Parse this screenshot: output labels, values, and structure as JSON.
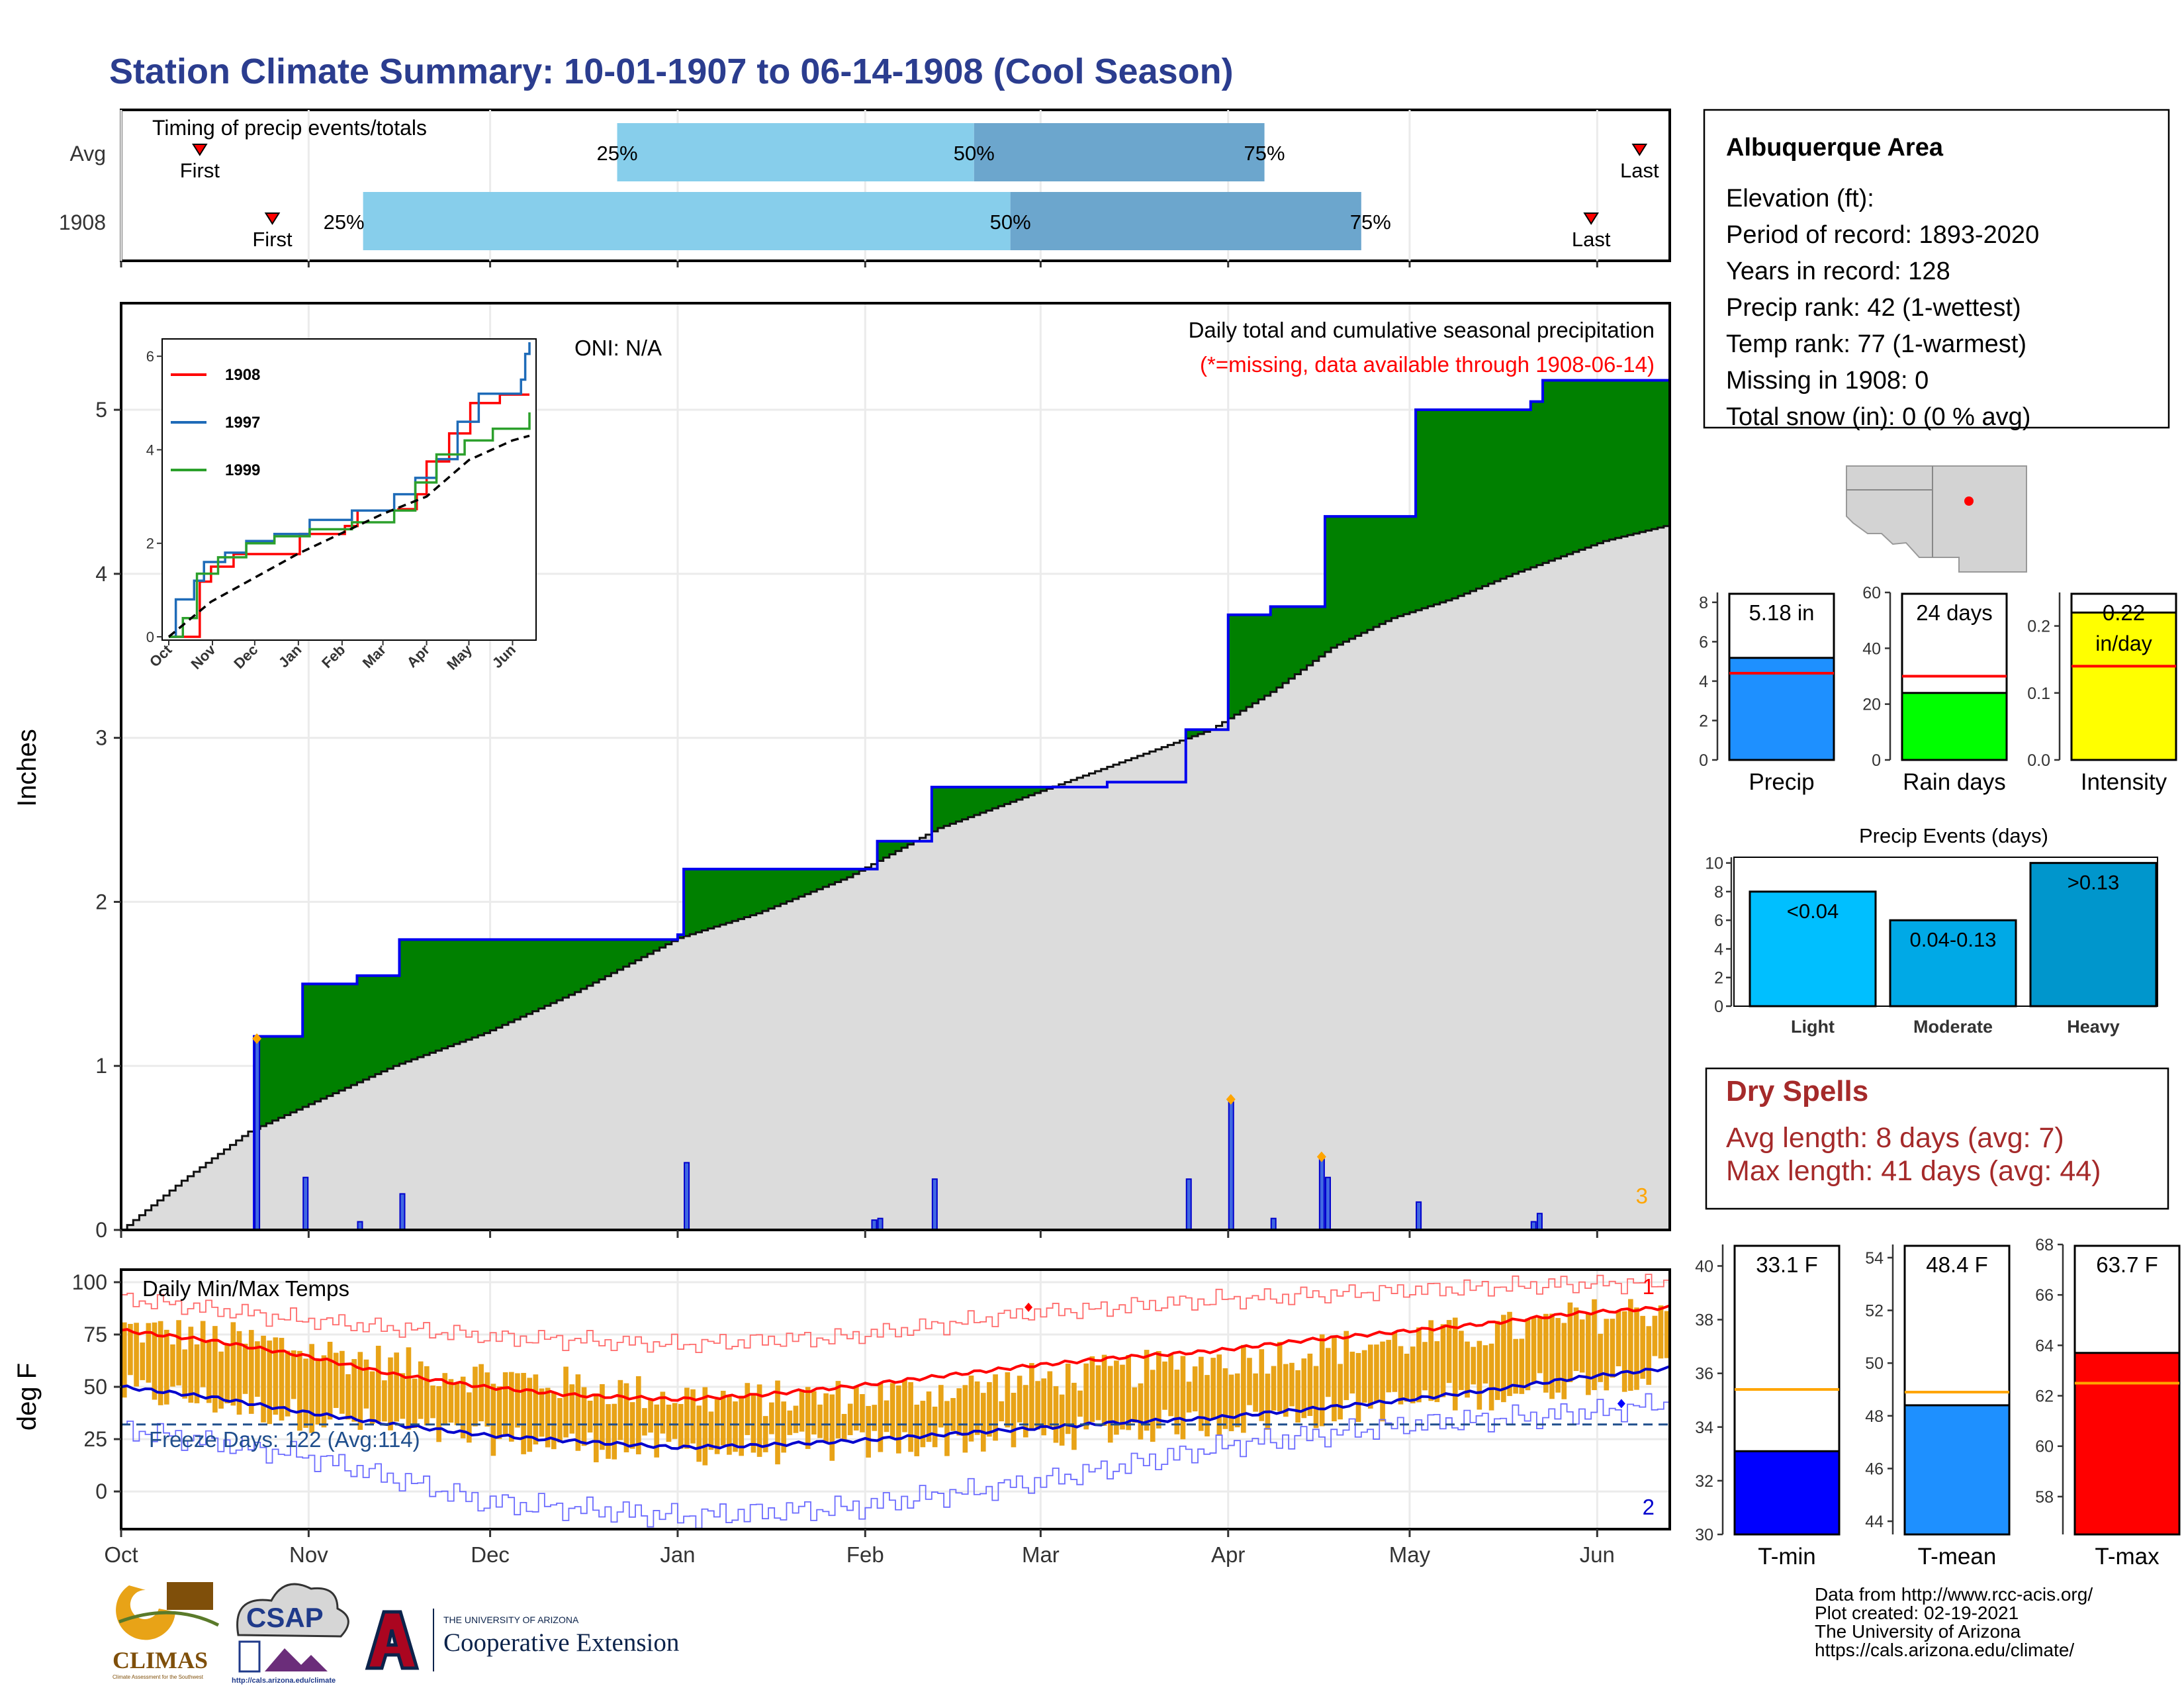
{
  "title": "Station Climate Summary: 10-01-1907 to 06-14-1908 (Cool Season)",
  "colors": {
    "title": "#2b3d8f",
    "green": "#008000",
    "brown": "#7f4f0a",
    "normal_fill": "#dcdcdc",
    "cum_line": "#0000ee",
    "light_blue": "#87ceeb",
    "mid_blue": "#6ca6cd",
    "tmax": "#ff0000",
    "tmin": "#0000cd",
    "temp_bar": "#e8a317",
    "dry_spells": "#a52a2a",
    "freeze": "#1f4e8c"
  },
  "timing": {
    "label": "Timing of precip events/totals",
    "rows": [
      {
        "label": "Avg",
        "first": "First",
        "last": "Last",
        "first_day": 13,
        "last_day": 251,
        "p25": 82,
        "p50": 141,
        "p75": 189
      },
      {
        "label": "1908",
        "first": "First",
        "last": "Last",
        "first_day": 25,
        "last_day": 243,
        "p25": 40,
        "p50": 147,
        "p75": 205
      }
    ],
    "pct_labels": [
      "25%",
      "50%",
      "75%"
    ],
    "xlim": [
      0,
      256
    ]
  },
  "months": [
    "Oct",
    "Nov",
    "Dec",
    "Jan",
    "Feb",
    "Mar",
    "Apr",
    "May",
    "Jun"
  ],
  "month_starts": [
    0,
    31,
    61,
    92,
    123,
    152,
    183,
    213,
    244
  ],
  "chart_data": [
    {
      "type": "area",
      "name": "precip_main",
      "ylabel": "Inches",
      "yticks": [
        0,
        1,
        2,
        3,
        4,
        5
      ],
      "ylim": [
        0,
        5.65
      ],
      "xlim": [
        0,
        256
      ],
      "oni": "ONI: N/A",
      "subtitle": "Daily total and cumulative seasonal precipitation",
      "missing_note": "(*=missing, data available through 1908-06-14)",
      "corner_label": "3",
      "cumulative_steps": [
        [
          0,
          0
        ],
        [
          22,
          1.18
        ],
        [
          30,
          1.5
        ],
        [
          39,
          1.55
        ],
        [
          46,
          1.77
        ],
        [
          92,
          1.8
        ],
        [
          93,
          2.2
        ],
        [
          125,
          2.37
        ],
        [
          134,
          2.7
        ],
        [
          163,
          2.73
        ],
        [
          176,
          3.05
        ],
        [
          183,
          3.75
        ],
        [
          190,
          3.8
        ],
        [
          199,
          4.35
        ],
        [
          214,
          5.0
        ],
        [
          233,
          5.05
        ],
        [
          235,
          5.18
        ],
        [
          256,
          5.18
        ]
      ],
      "normal_points": [
        [
          0,
          0
        ],
        [
          10,
          0.3
        ],
        [
          21,
          0.6
        ],
        [
          30,
          0.75
        ],
        [
          45,
          1.0
        ],
        [
          60,
          1.2
        ],
        [
          75,
          1.45
        ],
        [
          92,
          1.78
        ],
        [
          105,
          1.93
        ],
        [
          120,
          2.15
        ],
        [
          135,
          2.45
        ],
        [
          150,
          2.65
        ],
        [
          165,
          2.85
        ],
        [
          180,
          3.05
        ],
        [
          190,
          3.28
        ],
        [
          200,
          3.55
        ],
        [
          210,
          3.73
        ],
        [
          220,
          3.85
        ],
        [
          230,
          4.0
        ],
        [
          245,
          4.2
        ],
        [
          256,
          4.3
        ]
      ],
      "daily_bars": [
        [
          22,
          1.15
        ],
        [
          30,
          0.32
        ],
        [
          39,
          0.05
        ],
        [
          46,
          0.22
        ],
        [
          93,
          0.41
        ],
        [
          124,
          0.06
        ],
        [
          125,
          0.07
        ],
        [
          134,
          0.31
        ],
        [
          176,
          0.31
        ],
        [
          183,
          0.78
        ],
        [
          190,
          0.07
        ],
        [
          198,
          0.43
        ],
        [
          199,
          0.32
        ],
        [
          214,
          0.17
        ],
        [
          233,
          0.05
        ],
        [
          234,
          0.1
        ]
      ],
      "flagged_days": [
        [
          22,
          1.15
        ],
        [
          183,
          0.78
        ],
        [
          198,
          0.43
        ]
      ],
      "inset": {
        "xlabels": [
          "Oct",
          "Nov",
          "Dec",
          "Jan",
          "Feb",
          "Mar",
          "Apr",
          "May",
          "Jun"
        ],
        "yticks": [
          0,
          2,
          4,
          6
        ],
        "ylim": [
          0,
          6.3
        ],
        "series": [
          {
            "name": "1908",
            "color": "#ff0000",
            "points": [
              [
                0,
                0
              ],
              [
                22,
                1.18
              ],
              [
                30,
                1.5
              ],
              [
                46,
                1.77
              ],
              [
                93,
                2.2
              ],
              [
                125,
                2.37
              ],
              [
                134,
                2.7
              ],
              [
                163,
                2.73
              ],
              [
                176,
                3.05
              ],
              [
                183,
                3.75
              ],
              [
                199,
                4.35
              ],
              [
                214,
                5.0
              ],
              [
                235,
                5.18
              ],
              [
                256,
                5.18
              ]
            ]
          },
          {
            "name": "1997",
            "color": "#1e6bb8",
            "points": [
              [
                0,
                0
              ],
              [
                5,
                0.8
              ],
              [
                18,
                1.2
              ],
              [
                25,
                1.6
              ],
              [
                40,
                1.8
              ],
              [
                55,
                2.05
              ],
              [
                75,
                2.2
              ],
              [
                100,
                2.5
              ],
              [
                130,
                2.7
              ],
              [
                160,
                3.05
              ],
              [
                175,
                3.4
              ],
              [
                190,
                3.8
              ],
              [
                205,
                4.6
              ],
              [
                220,
                5.2
              ],
              [
                250,
                5.5
              ],
              [
                253,
                6.05
              ],
              [
                256,
                6.3
              ]
            ]
          },
          {
            "name": "1999",
            "color": "#2ca02c",
            "points": [
              [
                0,
                0
              ],
              [
                10,
                0.4
              ],
              [
                20,
                1.35
              ],
              [
                35,
                1.7
              ],
              [
                55,
                2.0
              ],
              [
                75,
                2.15
              ],
              [
                100,
                2.3
              ],
              [
                130,
                2.45
              ],
              [
                160,
                2.7
              ],
              [
                175,
                3.3
              ],
              [
                190,
                3.9
              ],
              [
                210,
                4.2
              ],
              [
                230,
                4.45
              ],
              [
                256,
                4.8
              ]
            ]
          },
          {
            "name": "avg",
            "color": "#000000",
            "dashed": true,
            "points": [
              [
                0,
                0
              ],
              [
                30,
                0.75
              ],
              [
                92,
                1.78
              ],
              [
                152,
                2.63
              ],
              [
                183,
                3.0
              ],
              [
                213,
                3.78
              ],
              [
                244,
                4.2
              ],
              [
                256,
                4.3
              ]
            ]
          }
        ]
      }
    },
    {
      "type": "bar",
      "name": "precip_total",
      "value_label": "5.18 in",
      "value": 5.18,
      "avg": 4.4,
      "yticks": [
        0,
        2,
        4,
        6,
        8
      ],
      "ylim": [
        0,
        8.5
      ],
      "xlabel": "Precip",
      "color": "#1e90ff"
    },
    {
      "type": "bar",
      "name": "rain_days",
      "value_label": "24 days",
      "value": 24,
      "avg": 30,
      "yticks": [
        0,
        20,
        40,
        60
      ],
      "ylim": [
        0,
        60
      ],
      "xlabel": "Rain days",
      "color": "#00ff00"
    },
    {
      "type": "bar",
      "name": "intensity",
      "value_label": "0.22",
      "value": 0.22,
      "unit_label": "in/day",
      "avg": 0.14,
      "yticks": [
        "0.0",
        "0.1",
        "0.2"
      ],
      "ylim": [
        0,
        0.25
      ],
      "xlabel": "Intensity",
      "color": "#ffff00"
    },
    {
      "type": "bar",
      "name": "precip_events",
      "title": "Precip Events (days)",
      "categories": [
        "Light",
        "Moderate",
        "Heavy"
      ],
      "labels": [
        "<0.04",
        "0.04-0.13",
        ">0.13"
      ],
      "values": [
        8,
        6,
        10
      ],
      "yticks": [
        0,
        2,
        4,
        6,
        8,
        10
      ],
      "ylim": [
        0,
        10.4
      ],
      "colors": [
        "#00bfff",
        "#00a9e6",
        "#0096cc"
      ]
    },
    {
      "type": "bar",
      "name": "temps_daily",
      "title": "Daily Min/Max Temps",
      "ylabel": "deg F",
      "yticks": [
        0,
        25,
        50,
        75,
        100
      ],
      "ylim": [
        -18,
        106
      ],
      "xlim": [
        0,
        256
      ],
      "freeze_label": "Freeze Days: 122 (Avg:114)",
      "freeze_temp": 32,
      "corner_top": "1",
      "corner_bottom": "2",
      "max_avg": [
        [
          0,
          77
        ],
        [
          15,
          72
        ],
        [
          30,
          65
        ],
        [
          45,
          56
        ],
        [
          60,
          50
        ],
        [
          75,
          46
        ],
        [
          92,
          44
        ],
        [
          105,
          46
        ],
        [
          120,
          50
        ],
        [
          135,
          55
        ],
        [
          150,
          60
        ],
        [
          165,
          64
        ],
        [
          180,
          67
        ],
        [
          195,
          72
        ],
        [
          210,
          76
        ],
        [
          225,
          80
        ],
        [
          240,
          85
        ],
        [
          256,
          88
        ]
      ],
      "min_avg": [
        [
          0,
          50
        ],
        [
          15,
          45
        ],
        [
          30,
          38
        ],
        [
          45,
          32
        ],
        [
          60,
          27
        ],
        [
          75,
          24
        ],
        [
          92,
          21
        ],
        [
          105,
          22
        ],
        [
          120,
          24
        ],
        [
          135,
          27
        ],
        [
          150,
          30
        ],
        [
          165,
          33
        ],
        [
          180,
          35
        ],
        [
          195,
          39
        ],
        [
          210,
          43
        ],
        [
          225,
          48
        ],
        [
          240,
          54
        ],
        [
          256,
          59
        ]
      ],
      "max_record": [
        [
          0,
          92
        ],
        [
          30,
          82
        ],
        [
          60,
          74
        ],
        [
          92,
          70
        ],
        [
          120,
          74
        ],
        [
          150,
          85
        ],
        [
          183,
          92
        ],
        [
          213,
          96
        ],
        [
          240,
          99
        ],
        [
          256,
          100
        ]
      ],
      "min_record": [
        [
          0,
          30
        ],
        [
          30,
          17
        ],
        [
          60,
          -5
        ],
        [
          92,
          -12
        ],
        [
          120,
          -8
        ],
        [
          152,
          5
        ],
        [
          183,
          22
        ],
        [
          213,
          32
        ],
        [
          244,
          38
        ],
        [
          256,
          42
        ]
      ],
      "bars": {
        "start": 0,
        "end": 256,
        "max_seed": [
          78,
          74,
          70,
          64,
          58,
          54,
          50,
          46,
          44,
          45,
          47,
          50,
          54,
          58,
          62,
          66,
          70,
          74,
          78,
          84,
          88
        ],
        "min_seed": [
          48,
          44,
          38,
          33,
          28,
          24,
          22,
          20,
          20,
          21,
          23,
          25,
          27,
          30,
          33,
          36,
          40,
          44,
          48,
          54,
          58
        ]
      }
    },
    {
      "type": "bar",
      "name": "tmin",
      "value_label": "33.1 F",
      "value": 33.1,
      "avg": 35.4,
      "yticks": [
        30,
        32,
        34,
        36,
        38,
        40
      ],
      "ylim": [
        30,
        40.8
      ],
      "xlabel": "T-min",
      "color": "#0000ff"
    },
    {
      "type": "bar",
      "name": "tmean",
      "value_label": "48.4 F",
      "value": 48.4,
      "avg": 48.9,
      "yticks": [
        44,
        46,
        48,
        50,
        52,
        54
      ],
      "ylim": [
        43.5,
        54.5
      ],
      "xlabel": "T-mean",
      "color": "#1e90ff"
    },
    {
      "type": "bar",
      "name": "tmax",
      "value_label": "63.7 F",
      "value": 63.7,
      "avg": 62.5,
      "yticks": [
        58,
        60,
        62,
        64,
        66,
        68
      ],
      "ylim": [
        56.5,
        68
      ],
      "xlabel": "T-max",
      "color": "#ff0000"
    }
  ],
  "station": {
    "name": "Albuquerque Area",
    "lines": [
      "Elevation (ft):",
      "Period of record: 1893-2020",
      "Years in record: 128",
      "Precip rank: 42 (1-wettest)",
      "Temp rank: 77 (1-warmest)",
      "Missing in 1908: 0",
      "Total snow (in): 0 (0 % avg)"
    ]
  },
  "dry_spells": {
    "title": "Dry Spells",
    "avg_line": "Avg length: 8 days (avg: 7)",
    "max_line": "Max length: 41 days (avg: 44)"
  },
  "footer": {
    "lines": [
      "Data from http://www.rcc-acis.org/",
      "Plot created: 02-19-2021",
      "The University of Arizona",
      "https://cals.arizona.edu/climate/"
    ],
    "logos": {
      "climas": "CLIMAS",
      "climas_tag": "Climate Assessment for the Southwest",
      "csap": "CSAP",
      "csap_url": "http://cals.arizona.edu/climate",
      "ua_small": "THE UNIVERSITY OF ARIZONA",
      "ua_big": "Cooperative Extension"
    }
  }
}
